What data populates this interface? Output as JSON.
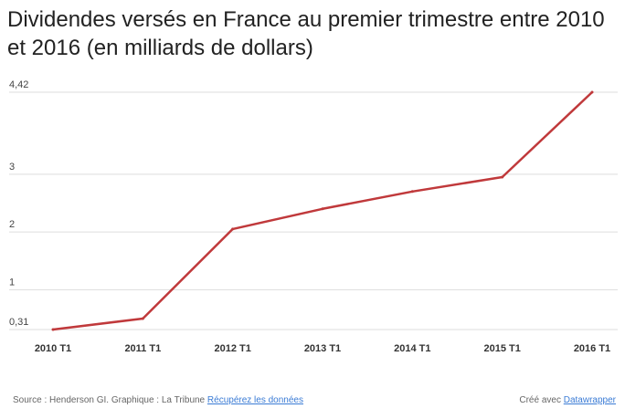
{
  "chart_data": {
    "type": "line",
    "title": "Dividendes versés en France au premier trimestre entre 2010 et 2016 (en milliards de dollars)",
    "categories": [
      "2010 T1",
      "2011 T1",
      "2012 T1",
      "2013 T1",
      "2014 T1",
      "2015 T1",
      "2016 T1"
    ],
    "series": [
      {
        "values": [
          0.31,
          0.5,
          2.05,
          2.4,
          2.7,
          2.95,
          4.42
        ]
      }
    ],
    "y_ticks": [
      {
        "value": 4.42,
        "label": "4,42"
      },
      {
        "value": 3,
        "label": "3"
      },
      {
        "value": 2,
        "label": "2"
      },
      {
        "value": 1,
        "label": "1"
      },
      {
        "value": 0.31,
        "label": "0,31"
      }
    ],
    "ylim": [
      0.31,
      4.42
    ],
    "grid": true,
    "line_color": "#c0393b"
  },
  "footer": {
    "source_text": "Source : Henderson GI. Graphique : La Tribune",
    "source_link": "Récupérez les données",
    "credit_text": "Créé avec",
    "credit_link": "Datawrapper"
  }
}
